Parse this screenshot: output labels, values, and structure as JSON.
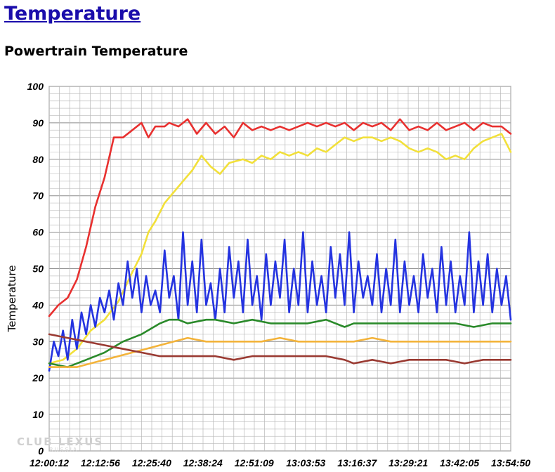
{
  "header": {
    "link_title": "Temperature",
    "section_title": "Powertrain Temperature"
  },
  "watermark": {
    "main": "CLUB LEXUS",
    "sub": "RUSSIA"
  },
  "chart_data": {
    "type": "line",
    "title": "Powertrain Temperature",
    "xlabel": "",
    "ylabel": "Temperature",
    "ylim": [
      0,
      100
    ],
    "yticks": [
      0,
      10,
      20,
      30,
      40,
      50,
      60,
      70,
      80,
      90,
      100
    ],
    "xlim": [
      0,
      1000
    ],
    "xtick_positions": [
      0,
      111,
      222,
      333,
      444,
      556,
      667,
      778,
      889,
      1000
    ],
    "xtick_labels": [
      "12:00:12",
      "12:12:56",
      "12:25:40",
      "12:38:24",
      "12:51:09",
      "13:03:53",
      "13:16:37",
      "13:29:21",
      "13:42:05",
      "13:54:50"
    ],
    "grid": true,
    "series": [
      {
        "name": "red",
        "color": "#e8302f",
        "x": [
          0,
          20,
          40,
          60,
          80,
          100,
          120,
          140,
          160,
          180,
          200,
          215,
          230,
          250,
          260,
          280,
          300,
          320,
          340,
          360,
          380,
          400,
          420,
          440,
          460,
          480,
          500,
          520,
          540,
          560,
          580,
          600,
          620,
          640,
          660,
          680,
          700,
          720,
          740,
          760,
          780,
          800,
          820,
          840,
          860,
          880,
          900,
          920,
          940,
          960,
          980,
          1000
        ],
        "values": [
          37,
          40,
          42,
          47,
          56,
          67,
          75,
          86,
          86,
          88,
          90,
          86,
          89,
          89,
          90,
          89,
          91,
          87,
          90,
          87,
          89,
          86,
          90,
          88,
          89,
          88,
          89,
          88,
          89,
          90,
          89,
          90,
          89,
          90,
          88,
          90,
          89,
          90,
          88,
          91,
          88,
          89,
          88,
          90,
          88,
          89,
          90,
          88,
          90,
          89,
          89,
          87
        ]
      },
      {
        "name": "yellow",
        "color": "#f2e03a",
        "x": [
          0,
          30,
          60,
          90,
          120,
          150,
          180,
          200,
          215,
          230,
          250,
          270,
          290,
          310,
          330,
          350,
          370,
          390,
          420,
          440,
          460,
          480,
          500,
          520,
          540,
          560,
          580,
          600,
          620,
          640,
          660,
          680,
          700,
          720,
          740,
          760,
          780,
          800,
          820,
          840,
          860,
          880,
          900,
          920,
          940,
          960,
          980,
          1000
        ],
        "values": [
          24,
          25,
          28,
          33,
          36,
          41,
          49,
          54,
          60,
          63,
          68,
          71,
          74,
          77,
          81,
          78,
          76,
          79,
          80,
          79,
          81,
          80,
          82,
          81,
          82,
          81,
          83,
          82,
          84,
          86,
          85,
          86,
          86,
          85,
          86,
          85,
          83,
          82,
          83,
          82,
          80,
          81,
          80,
          83,
          85,
          86,
          87,
          82
        ]
      },
      {
        "name": "blue",
        "color": "#2433e0",
        "x": [
          0,
          10,
          20,
          30,
          40,
          50,
          60,
          70,
          80,
          90,
          100,
          110,
          120,
          130,
          140,
          150,
          160,
          170,
          180,
          190,
          200,
          210,
          220,
          230,
          240,
          250,
          260,
          270,
          280,
          290,
          300,
          310,
          320,
          330,
          340,
          350,
          360,
          370,
          380,
          390,
          400,
          410,
          420,
          430,
          440,
          450,
          460,
          470,
          480,
          490,
          500,
          510,
          520,
          530,
          540,
          550,
          560,
          570,
          580,
          590,
          600,
          610,
          620,
          630,
          640,
          650,
          660,
          670,
          680,
          690,
          700,
          710,
          720,
          730,
          740,
          750,
          760,
          770,
          780,
          790,
          800,
          810,
          820,
          830,
          840,
          850,
          860,
          870,
          880,
          890,
          900,
          910,
          920,
          930,
          940,
          950,
          960,
          970,
          980,
          990,
          1000
        ],
        "values": [
          22,
          30,
          26,
          33,
          25,
          36,
          28,
          38,
          32,
          40,
          34,
          42,
          38,
          44,
          36,
          46,
          40,
          52,
          42,
          50,
          38,
          48,
          40,
          44,
          38,
          55,
          42,
          48,
          36,
          60,
          40,
          52,
          38,
          58,
          40,
          46,
          36,
          50,
          38,
          56,
          42,
          52,
          38,
          58,
          40,
          48,
          36,
          54,
          40,
          52,
          42,
          58,
          38,
          50,
          40,
          60,
          38,
          52,
          40,
          48,
          38,
          56,
          42,
          54,
          40,
          60,
          38,
          52,
          42,
          48,
          40,
          54,
          38,
          50,
          40,
          58,
          38,
          52,
          40,
          48,
          38,
          54,
          42,
          50,
          38,
          56,
          40,
          52,
          38,
          48,
          40,
          60,
          38,
          52,
          40,
          54,
          38,
          50,
          40,
          48,
          36
        ]
      },
      {
        "name": "green",
        "color": "#2a8a2a",
        "x": [
          0,
          40,
          80,
          120,
          160,
          200,
          240,
          260,
          280,
          300,
          340,
          360,
          400,
          440,
          480,
          520,
          560,
          600,
          640,
          660,
          680,
          720,
          760,
          800,
          840,
          880,
          920,
          960,
          1000
        ],
        "values": [
          24,
          23,
          25,
          27,
          30,
          32,
          35,
          36,
          36,
          35,
          36,
          36,
          35,
          36,
          35,
          35,
          35,
          36,
          34,
          35,
          35,
          35,
          35,
          35,
          35,
          35,
          34,
          35,
          35
        ]
      },
      {
        "name": "orange",
        "color": "#f3b33a",
        "x": [
          0,
          30,
          60,
          90,
          120,
          150,
          180,
          210,
          240,
          270,
          300,
          340,
          380,
          420,
          460,
          500,
          540,
          580,
          620,
          660,
          700,
          740,
          780,
          820,
          860,
          900,
          940,
          980,
          1000
        ],
        "values": [
          23,
          23,
          23,
          24,
          25,
          26,
          27,
          28,
          29,
          30,
          31,
          30,
          30,
          30,
          30,
          31,
          30,
          30,
          30,
          30,
          31,
          30,
          30,
          30,
          30,
          30,
          30,
          30,
          30
        ]
      },
      {
        "name": "brown",
        "color": "#9a3a32",
        "x": [
          0,
          40,
          80,
          120,
          160,
          200,
          240,
          280,
          320,
          360,
          400,
          440,
          480,
          520,
          560,
          600,
          640,
          660,
          700,
          740,
          780,
          820,
          860,
          900,
          940,
          980,
          1000
        ],
        "values": [
          32,
          31,
          30,
          29,
          28,
          27,
          26,
          26,
          26,
          26,
          25,
          26,
          26,
          26,
          26,
          26,
          25,
          24,
          25,
          24,
          25,
          25,
          25,
          24,
          25,
          25,
          25
        ]
      }
    ]
  }
}
